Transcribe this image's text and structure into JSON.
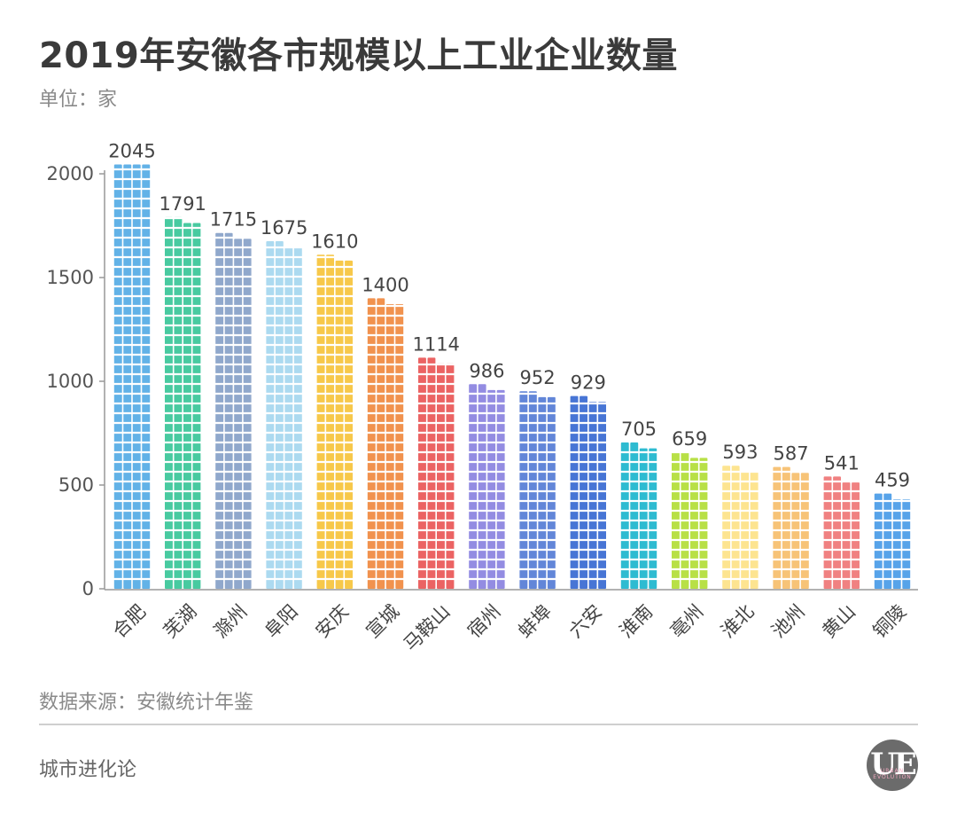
{
  "title": "2019年安徽各市规模以上工业企业数量",
  "unit": "单位：家",
  "source": "数据来源：安徽统计年鉴",
  "brand": "城市进化论",
  "logo": {
    "text": "UE",
    "subtext": "URBAN EVOLUTION"
  },
  "chart_data": {
    "type": "bar",
    "title": "2019年安徽各市规模以上工业企业数量",
    "ylabel": "单位：家",
    "xlabel": "",
    "ylim": [
      0,
      2000
    ],
    "yticks": [
      0,
      500,
      1000,
      1500,
      2000
    ],
    "grid": false,
    "categories": [
      "合肥",
      "芜湖",
      "滁州",
      "阜阳",
      "安庆",
      "宣城",
      "马鞍山",
      "宿州",
      "蚌埠",
      "六安",
      "淮南",
      "亳州",
      "淮北",
      "池州",
      "黄山",
      "铜陵"
    ],
    "values": [
      2045,
      1791,
      1715,
      1675,
      1610,
      1400,
      1114,
      986,
      952,
      929,
      705,
      659,
      593,
      587,
      541,
      459
    ],
    "colors": [
      "#5aaee6",
      "#3ec79b",
      "#8aa3c9",
      "#a8d8ef",
      "#f7c540",
      "#f08c45",
      "#ea5b5b",
      "#8d86e0",
      "#5a7fd6",
      "#3d6ed3",
      "#23b7cf",
      "#b4de3c",
      "#fde38a",
      "#f7c070",
      "#ef7a7a",
      "#4e9ee8"
    ]
  }
}
